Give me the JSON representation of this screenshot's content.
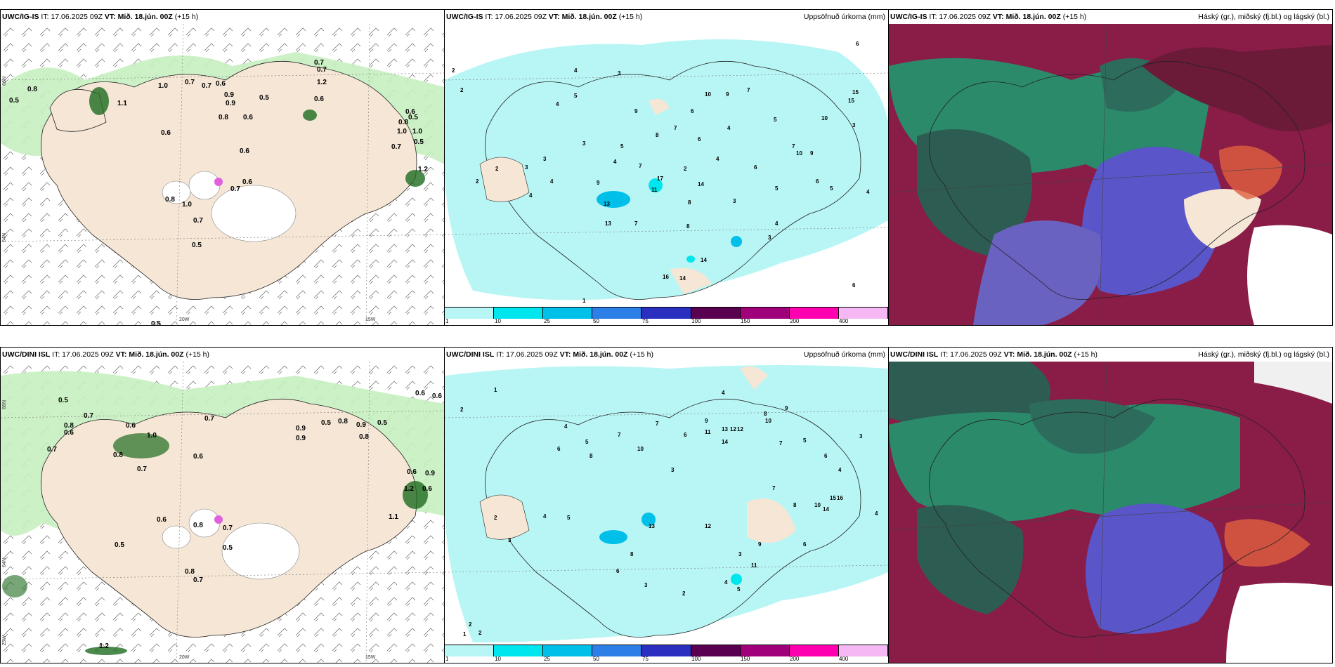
{
  "top_row": {
    "wind_panel": {
      "model": "UWC/IG-IS",
      "issue": "IT: 17.06.2025 09Z",
      "valid": "VT: Mið. 18.jún. 00Z",
      "lead": "(+15 h)",
      "right_title": ""
    },
    "precip_panel": {
      "model": "UWC/IG-IS",
      "issue": "IT: 17.06.2025 09Z",
      "valid": "VT: Mið. 18.jún. 00Z",
      "lead": "(+15 h)",
      "right_title": "Uppsöfnuð úrkoma (mm)"
    },
    "cloud_panel": {
      "model": "UWC/IG-IS",
      "issue": "IT: 17.06.2025 09Z",
      "valid": "VT: Mið. 18.jún. 00Z",
      "lead": "(+15 h)",
      "right_title": "Háský (gr.), miðský (fj.bl.) og lágský (bl.)"
    }
  },
  "bottom_row": {
    "wind_panel": {
      "model": "UWC/DINI ISL",
      "issue": "IT: 17.06.2025 09Z",
      "valid": "VT: Mið. 18.jún. 00Z",
      "lead": "(+15 h)",
      "right_title": ""
    },
    "precip_panel": {
      "model": "UWC/DINI ISL",
      "issue": "IT: 17.06.2025 09Z",
      "valid": "VT: Mið. 18.jún. 00Z",
      "lead": "(+15 h)",
      "right_title": "Uppsöfnuð úrkoma (mm)"
    },
    "cloud_panel": {
      "model": "UWC/DINI ISL",
      "issue": "IT: 17.06.2025 09Z",
      "valid": "VT: Mið. 18.jún. 00Z",
      "lead": "(+15 h)",
      "right_title": "Háský (gr.), miðský (fj.bl.) og lágský (bl.)"
    }
  },
  "grid_labels": {
    "lat_66": "66N",
    "lat_64": "64N",
    "lon_20": "20W",
    "lon_15": "15W",
    "lon_25": "25W",
    "lat_65": "65N"
  },
  "precip_legend": {
    "ticks": [
      "1",
      "10",
      "25",
      "50",
      "75",
      "100",
      "150",
      "200",
      "400"
    ],
    "colors": [
      "#b8f5f5",
      "#00e6ee",
      "#00c0ea",
      "#2d7fe8",
      "#2a2fc0",
      "#5a0050",
      "#a0007a",
      "#ff00b0",
      "#f5b8f5"
    ]
  },
  "colors": {
    "land": "#f5e6d6",
    "light_precip": "#b8f5f5",
    "wind_green_light": "#c8f0c0",
    "wind_green_dark": "#1f6b1f",
    "cloud_high": "#2d6b5c",
    "cloud_mid": "#b02050",
    "cloud_low": "#5a55c8"
  },
  "top_wind_values": [
    "0.8",
    "0.5",
    "1.0",
    "0.7",
    "0.9",
    "0.6",
    "0.5",
    "0.7",
    "0.6",
    "1.2",
    "0.6",
    "1.0",
    "0.7",
    "0.8",
    "0.5",
    "0.6",
    "0.6",
    "1.1",
    "0.9",
    "0.8",
    "1.0",
    "0.7",
    "0.6",
    "0.8",
    "0.7",
    "0.6",
    "0.5",
    "0.7",
    "1.0",
    "0.5",
    "0.7",
    "1.2",
    "0.5"
  ],
  "bottom_wind_values": [
    "0.5",
    "0.7",
    "0.8",
    "0.6",
    "0.6",
    "0.7",
    "1.0",
    "0.9",
    "0.5",
    "0.8",
    "0.9",
    "0.6",
    "0.6",
    "0.7",
    "0.8",
    "0.5",
    "0.7",
    "0.8",
    "0.6",
    "0.6",
    "0.7",
    "0.9",
    "0.8",
    "0.5",
    "1.2",
    "1.1",
    "0.8",
    "0.7",
    "0.5",
    "0.9",
    "1.2",
    "0.6",
    "0.6"
  ],
  "top_precip_values": [
    "2",
    "2",
    "4",
    "5",
    "3",
    "4",
    "10",
    "9",
    "7",
    "4",
    "6",
    "9",
    "8",
    "7",
    "3",
    "4",
    "5",
    "7",
    "10",
    "9",
    "3",
    "4",
    "6",
    "5",
    "6",
    "4",
    "2",
    "3",
    "2",
    "4",
    "13",
    "11",
    "7",
    "8",
    "6",
    "5",
    "17",
    "14",
    "3",
    "4",
    "8",
    "9",
    "13",
    "15",
    "15",
    "2",
    "6",
    "4",
    "3",
    "5",
    "7",
    "10",
    "3",
    "14",
    "16",
    "14",
    "6",
    "1"
  ],
  "bottom_precip_values": [
    "2",
    "1",
    "4",
    "6",
    "5",
    "7",
    "8",
    "10",
    "3",
    "9",
    "6",
    "4",
    "7",
    "11",
    "14",
    "13",
    "12",
    "12",
    "10",
    "8",
    "9",
    "7",
    "5",
    "6",
    "4",
    "3",
    "12",
    "15",
    "16",
    "14",
    "13",
    "5",
    "4",
    "3",
    "2",
    "10",
    "8",
    "7",
    "6",
    "4",
    "9",
    "11",
    "3",
    "5",
    "4",
    "2",
    "3",
    "6",
    "8",
    "2",
    "2",
    "1"
  ]
}
